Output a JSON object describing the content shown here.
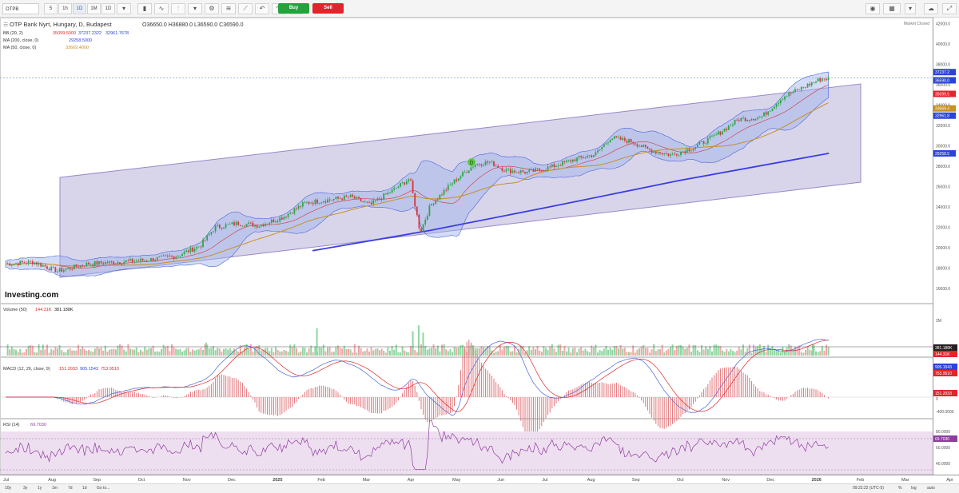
{
  "toolbar": {
    "symbol": "OTPB",
    "intervals": [
      "5",
      "1h",
      "1D",
      "1M",
      "1D"
    ],
    "buy_label": "Buy",
    "sell_label": "Sell"
  },
  "main_pane": {
    "title": "OTP Bank Nyrt, Hungary, D, Budapest",
    "ohlc": "O36650.0  H36880.0  L36590.0  C36590.0",
    "bb_label": "BB (20, 2)",
    "bb_values": [
      "35099.5000",
      "37237.2322",
      "32961.7678"
    ],
    "ma200_label": "MA (200, close, 0)",
    "ma200_value": "29258.5000",
    "ma50_label": "MA (50, close, 0)",
    "ma50_value": "33669.4000",
    "market_status": "Market Closed",
    "logo": "Investing.com",
    "y_ticks": [
      "42000.0",
      "40000.0",
      "38000.0",
      "36000.0",
      "34000.0",
      "32000.0",
      "30000.0",
      "28000.0",
      "26000.0",
      "24000.0",
      "22000.0",
      "20000.0",
      "18000.0",
      "16000.0"
    ],
    "price_tags": [
      {
        "value": "37237.2",
        "color": "#2b44d8"
      },
      {
        "value": "36590.0",
        "color": "#2b44d8"
      },
      {
        "value": "35099.5",
        "color": "#e1252b"
      },
      {
        "value": "33669.4",
        "color": "#c8901e"
      },
      {
        "value": "32961.8",
        "color": "#2b44d8"
      },
      {
        "value": "29258.5",
        "color": "#2b44d8"
      }
    ],
    "marker": "D"
  },
  "volume_pane": {
    "label": "Volume (50)",
    "value1": "144.31K",
    "value2": "381.188K",
    "y_tick": "2M",
    "tags": [
      {
        "value": "381.188K",
        "color": "#222222"
      },
      {
        "value": "144.31K",
        "color": "#e1252b"
      }
    ]
  },
  "macd_pane": {
    "label": "MACD (12, 26, close, 9)",
    "values": [
      "151.2033",
      "905.1543",
      "753.9510"
    ],
    "y_ticks": [
      "0",
      "-400.0000"
    ],
    "tags": [
      {
        "value": "905.1543",
        "color": "#2b44d8"
      },
      {
        "value": "753.9510",
        "color": "#e1252b"
      },
      {
        "value": "151.2033",
        "color": "#e1252b"
      }
    ]
  },
  "rsi_pane": {
    "label": "RSI (14)",
    "value": "69.7030",
    "y_ticks": [
      "80.0000",
      "60.0000",
      "40.0000"
    ],
    "tag": "69.7030"
  },
  "x_axis": [
    "Jul",
    "Aug",
    "Sep",
    "Oct",
    "Nov",
    "Dec",
    "2025",
    "Feb",
    "Mar",
    "Apr",
    "May",
    "Jun",
    "Jul",
    "Aug",
    "Sep",
    "Oct",
    "Nov",
    "Dec",
    "2026",
    "Feb",
    "Mar",
    "Apr"
  ],
  "bottom_bar": {
    "ranges": [
      "10y",
      "3y",
      "1y",
      "1m",
      "7d",
      "1d"
    ],
    "goto": "Go to...",
    "time": "09:22:22 (UTC-5)",
    "options": [
      "%",
      "log",
      "auto"
    ]
  },
  "chart_data": {
    "type": "line",
    "x_range": [
      "2024-07",
      "2026-04"
    ],
    "price_ylim": [
      16000,
      42000
    ],
    "close_points": [
      [
        "2024-07-01",
        18400
      ],
      [
        "2024-07-20",
        18600
      ],
      [
        "2024-08-05",
        17700
      ],
      [
        "2024-08-25",
        18400
      ],
      [
        "2024-09-15",
        18600
      ],
      [
        "2024-10-05",
        18800
      ],
      [
        "2024-10-25",
        19200
      ],
      [
        "2024-11-10",
        20200
      ],
      [
        "2024-11-20",
        22000
      ],
      [
        "2024-12-05",
        22400
      ],
      [
        "2024-12-20",
        22200
      ],
      [
        "2025-01-05",
        23000
      ],
      [
        "2025-01-20",
        24400
      ],
      [
        "2025-02-05",
        24700
      ],
      [
        "2025-02-20",
        25000
      ],
      [
        "2025-03-05",
        24200
      ],
      [
        "2025-03-20",
        25600
      ],
      [
        "2025-04-01",
        26800
      ],
      [
        "2025-04-08",
        21500
      ],
      [
        "2025-04-15",
        24200
      ],
      [
        "2025-04-30",
        26400
      ],
      [
        "2025-05-15",
        28200
      ],
      [
        "2025-05-25",
        28400
      ],
      [
        "2025-06-05",
        27600
      ],
      [
        "2025-06-20",
        27400
      ],
      [
        "2025-07-05",
        27900
      ],
      [
        "2025-07-20",
        28600
      ],
      [
        "2025-08-05",
        29200
      ],
      [
        "2025-08-15",
        30800
      ],
      [
        "2025-08-30",
        30400
      ],
      [
        "2025-09-10",
        29600
      ],
      [
        "2025-09-25",
        29100
      ],
      [
        "2025-10-10",
        29800
      ],
      [
        "2025-10-25",
        31000
      ],
      [
        "2025-11-10",
        32600
      ],
      [
        "2025-11-25",
        32800
      ],
      [
        "2025-12-10",
        34800
      ],
      [
        "2025-12-20",
        35500
      ],
      [
        "2026-01-05",
        36600
      ],
      [
        "2026-01-10",
        36590
      ]
    ],
    "ma200_points": [
      [
        "2025-01-25",
        19700
      ],
      [
        "2025-04-15",
        21700
      ],
      [
        "2025-07-01",
        23900
      ],
      [
        "2025-10-01",
        26600
      ],
      [
        "2026-01-10",
        29260
      ]
    ],
    "ma50_last": 33669.4,
    "bb_last": {
      "middle": 35099.5,
      "upper": 37237.2,
      "lower": 32961.8
    },
    "channel": {
      "start": "2024-08-12",
      "end": "2026-02-05",
      "upper": [
        26900,
        36000
      ],
      "lower": [
        19100,
        26200
      ]
    },
    "volume_ylim": [
      0,
      2500000
    ],
    "volume_spikes": [
      [
        "2025-01-28",
        1900000
      ],
      [
        "2025-04-03",
        1700000
      ],
      [
        "2025-04-07",
        2100000
      ],
      [
        "2025-04-10",
        1600000
      ],
      [
        "2024-11-14",
        900000
      ],
      [
        "2025-12-30",
        800000
      ]
    ],
    "volume_last": [
      381188,
      144310
    ],
    "macd_ylim": [
      -500,
      1000
    ],
    "macd_last": {
      "histogram": 151.2033,
      "macd": 905.1543,
      "signal": 753.951
    },
    "rsi_ylim": [
      30,
      90
    ],
    "rsi_last": 69.703
  }
}
